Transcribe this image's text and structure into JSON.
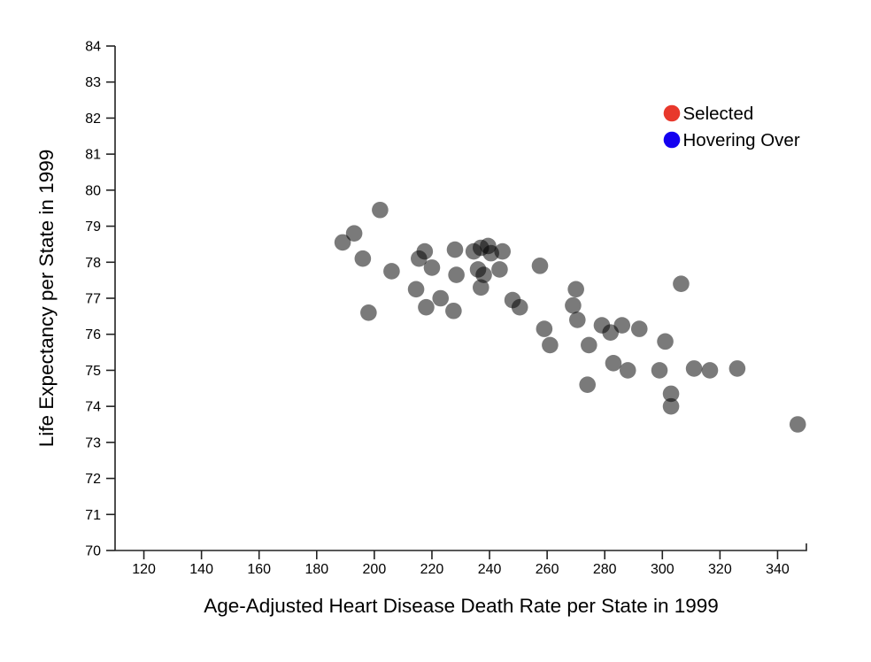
{
  "chart_data": {
    "type": "scatter",
    "title": "",
    "xlabel": "Age-Adjusted Heart Disease Death Rate per State in 1999",
    "ylabel": "Life Expectancy per State in 1999",
    "xlim": [
      110,
      350
    ],
    "ylim": [
      70,
      84
    ],
    "x_ticks": [
      120,
      140,
      160,
      180,
      200,
      220,
      240,
      260,
      280,
      300,
      320,
      340
    ],
    "y_ticks": [
      70,
      71,
      72,
      73,
      74,
      75,
      76,
      77,
      78,
      79,
      80,
      81,
      82,
      83,
      84
    ],
    "grid": false,
    "legend_position": "top-right",
    "point_color": "#000000",
    "point_opacity": 0.52,
    "point_radius": 9.3,
    "points": [
      [
        189,
        78.55
      ],
      [
        193,
        78.8
      ],
      [
        196,
        78.1
      ],
      [
        198,
        76.6
      ],
      [
        202,
        79.45
      ],
      [
        206,
        77.75
      ],
      [
        214.5,
        77.25
      ],
      [
        215.5,
        78.1
      ],
      [
        217.5,
        78.3
      ],
      [
        218,
        76.75
      ],
      [
        220,
        77.85
      ],
      [
        223,
        77.0
      ],
      [
        227.5,
        76.65
      ],
      [
        228,
        78.35
      ],
      [
        228.5,
        77.65
      ],
      [
        234.5,
        78.3
      ],
      [
        236,
        77.8
      ],
      [
        237,
        78.4
      ],
      [
        237,
        77.3
      ],
      [
        238,
        77.65
      ],
      [
        239.5,
        78.45
      ],
      [
        240.5,
        78.25
      ],
      [
        243.5,
        77.8
      ],
      [
        244.5,
        78.3
      ],
      [
        248,
        76.95
      ],
      [
        250.5,
        76.75
      ],
      [
        257.5,
        77.9
      ],
      [
        259,
        76.15
      ],
      [
        261,
        75.7
      ],
      [
        269,
        76.8
      ],
      [
        270,
        77.25
      ],
      [
        270.5,
        76.4
      ],
      [
        274,
        74.6
      ],
      [
        274.5,
        75.7
      ],
      [
        279,
        76.25
      ],
      [
        282,
        76.05
      ],
      [
        283,
        75.2
      ],
      [
        286,
        76.25
      ],
      [
        288,
        75.0
      ],
      [
        292,
        76.15
      ],
      [
        299,
        75.0
      ],
      [
        301,
        75.8
      ],
      [
        303,
        74.35
      ],
      [
        303,
        74.0
      ],
      [
        306.5,
        77.4
      ],
      [
        311,
        75.05
      ],
      [
        316.5,
        75.0
      ],
      [
        326,
        75.05
      ],
      [
        347,
        73.5
      ]
    ],
    "legend": {
      "entries": [
        {
          "label": "Selected",
          "color": "#e8382c"
        },
        {
          "label": "Hovering Over",
          "color": "#1400f0"
        }
      ]
    }
  }
}
